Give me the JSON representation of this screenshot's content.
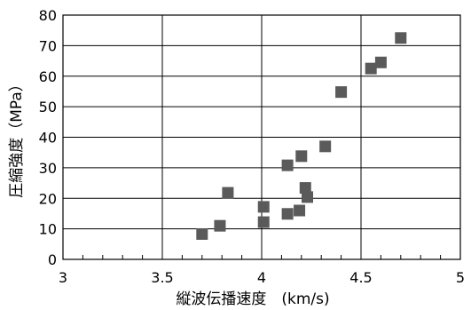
{
  "chart_data": {
    "type": "scatter",
    "title": "",
    "xlabel": "縦波伝播速度　(km/s)",
    "ylabel": "圧縮強度（MPa）",
    "xlim": [
      3,
      5
    ],
    "ylim": [
      0,
      80
    ],
    "xticks": [
      3,
      3.5,
      4,
      4.5,
      5
    ],
    "xtick_labels": [
      "3",
      "3.5",
      "4",
      "4.5",
      "5"
    ],
    "yticks": [
      0,
      10,
      20,
      30,
      40,
      50,
      60,
      70,
      80
    ],
    "ytick_labels": [
      "0",
      "10",
      "20",
      "30",
      "40",
      "50",
      "60",
      "70",
      "80"
    ],
    "grid": true,
    "legend": "none",
    "marker": "square",
    "marker_color": "#5a5a5a",
    "points": [
      {
        "x": 3.7,
        "y": 8.3
      },
      {
        "x": 3.79,
        "y": 11.0
      },
      {
        "x": 3.83,
        "y": 21.8
      },
      {
        "x": 4.01,
        "y": 12.2
      },
      {
        "x": 4.01,
        "y": 17.2
      },
      {
        "x": 4.13,
        "y": 14.9
      },
      {
        "x": 4.13,
        "y": 30.8
      },
      {
        "x": 4.19,
        "y": 16.0
      },
      {
        "x": 4.2,
        "y": 33.8
      },
      {
        "x": 4.22,
        "y": 23.4
      },
      {
        "x": 4.23,
        "y": 20.4
      },
      {
        "x": 4.32,
        "y": 37.0
      },
      {
        "x": 4.4,
        "y": 54.8
      },
      {
        "x": 4.55,
        "y": 62.5
      },
      {
        "x": 4.6,
        "y": 64.5
      },
      {
        "x": 4.7,
        "y": 72.5
      }
    ]
  }
}
